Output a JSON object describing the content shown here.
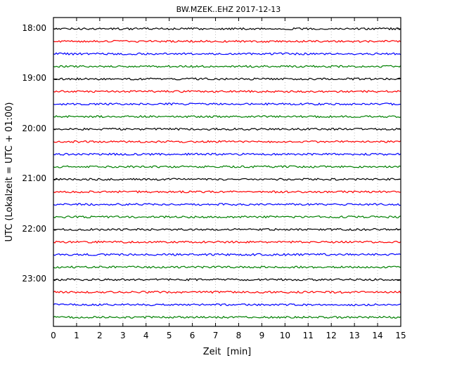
{
  "chart_data": {
    "type": "line",
    "title": "BW.MZEK..EHZ 2017-12-13",
    "station": "BW.MZEK..EHZ",
    "date": "2017-12-13",
    "xlabel": "Zeit  [min]",
    "ylabel": "UTC (Lokalzeit = UTC + 01:00)",
    "xlim": [
      0,
      15
    ],
    "minutes_per_row": 15,
    "grid": {
      "vertical_dotted": true,
      "horizontal": false
    },
    "x_tick_labels": [
      "0",
      "1",
      "2",
      "3",
      "4",
      "5",
      "6",
      "7",
      "8",
      "9",
      "10",
      "11",
      "12",
      "13",
      "14",
      "15"
    ],
    "y_tick_labels": [
      "18:00",
      "19:00",
      "20:00",
      "21:00",
      "22:00",
      "23:00"
    ],
    "trace_color_cycle": [
      "#000000",
      "#ff0000",
      "#0000ff",
      "#008000"
    ],
    "trace_description": "24 helicorder rows of 15 minutes each; flat low-amplitude noise, no visible events",
    "rows": [
      {
        "start": "18:00",
        "color": "#000000"
      },
      {
        "start": "18:15",
        "color": "#ff0000"
      },
      {
        "start": "18:30",
        "color": "#0000ff"
      },
      {
        "start": "18:45",
        "color": "#008000"
      },
      {
        "start": "19:00",
        "color": "#000000"
      },
      {
        "start": "19:15",
        "color": "#ff0000"
      },
      {
        "start": "19:30",
        "color": "#0000ff"
      },
      {
        "start": "19:45",
        "color": "#008000"
      },
      {
        "start": "20:00",
        "color": "#000000"
      },
      {
        "start": "20:15",
        "color": "#ff0000"
      },
      {
        "start": "20:30",
        "color": "#0000ff"
      },
      {
        "start": "20:45",
        "color": "#008000"
      },
      {
        "start": "21:00",
        "color": "#000000"
      },
      {
        "start": "21:15",
        "color": "#ff0000"
      },
      {
        "start": "21:30",
        "color": "#0000ff"
      },
      {
        "start": "21:45",
        "color": "#008000"
      },
      {
        "start": "22:00",
        "color": "#000000"
      },
      {
        "start": "22:15",
        "color": "#ff0000"
      },
      {
        "start": "22:30",
        "color": "#0000ff"
      },
      {
        "start": "22:45",
        "color": "#008000"
      },
      {
        "start": "23:00",
        "color": "#000000"
      },
      {
        "start": "23:15",
        "color": "#ff0000"
      },
      {
        "start": "23:30",
        "color": "#0000ff"
      },
      {
        "start": "23:45",
        "color": "#008000"
      }
    ]
  }
}
